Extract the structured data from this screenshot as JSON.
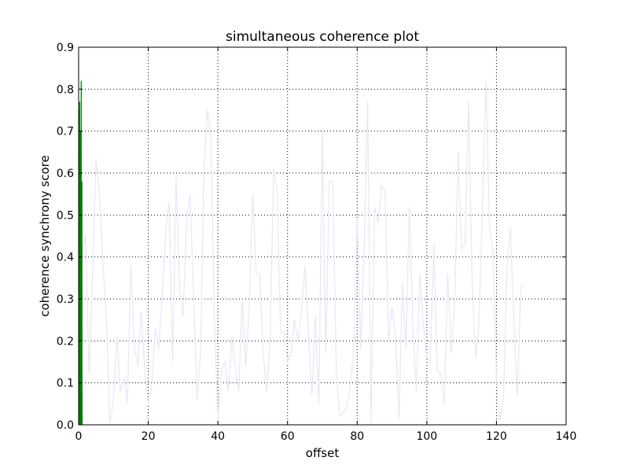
{
  "chart_data": {
    "type": "line",
    "title": "simultaneous coherence plot",
    "xlabel": "offset",
    "ylabel": "coherence synchrony score",
    "xlim": [
      0,
      140
    ],
    "ylim": [
      0,
      0.9
    ],
    "xticks": [
      "0",
      "20",
      "40",
      "60",
      "80",
      "100",
      "120",
      "140"
    ],
    "yticks": [
      "0.0",
      "0.1",
      "0.2",
      "0.3",
      "0.4",
      "0.5",
      "0.6",
      "0.7",
      "0.8",
      "0.9"
    ],
    "grid": true,
    "legend": "none",
    "colors": {
      "faint_series": "#e6e6fa",
      "marker_series": "#007f00"
    },
    "series": [
      {
        "style": "faint-line",
        "x": [
          0,
          1,
          2,
          3,
          4,
          5,
          6,
          7,
          8,
          9,
          10,
          11,
          12,
          13,
          14,
          15,
          16,
          17,
          18,
          19,
          20,
          21,
          22,
          23,
          24,
          25,
          26,
          27,
          28,
          29,
          30,
          31,
          32,
          33,
          34,
          35,
          36,
          37,
          38,
          39,
          40,
          41,
          42,
          43,
          44,
          45,
          46,
          47,
          48,
          49,
          50,
          51,
          52,
          53,
          54,
          55,
          56,
          57,
          58,
          59,
          60,
          61,
          62,
          63,
          64,
          65,
          66,
          67,
          68,
          69,
          70,
          71,
          72,
          73,
          74,
          75,
          76,
          77,
          78,
          79,
          80,
          81,
          82,
          83,
          84,
          85,
          86,
          87,
          88,
          89,
          90,
          91,
          92,
          93,
          94,
          95,
          96,
          97,
          98,
          99,
          100,
          101,
          102,
          103,
          104,
          105,
          106,
          107,
          108,
          109,
          110,
          111,
          112,
          113,
          114,
          115,
          116,
          117,
          118,
          119,
          120,
          121,
          122,
          123,
          124,
          125,
          126,
          127,
          128
        ],
        "y": [
          0.02,
          0.41,
          0.45,
          0.12,
          0.36,
          0.63,
          0.55,
          0.38,
          0.25,
          0.005,
          0.06,
          0.21,
          0.08,
          0.11,
          0.05,
          0.38,
          0.19,
          0.14,
          0.27,
          0.13,
          0.05,
          0.09,
          0.23,
          0.18,
          0.31,
          0.46,
          0.53,
          0.15,
          0.59,
          0.32,
          0.26,
          0.48,
          0.55,
          0.31,
          0.06,
          0.17,
          0.61,
          0.75,
          0.68,
          0.25,
          0.01,
          0.13,
          0.15,
          0.08,
          0.21,
          0.14,
          0.08,
          0.3,
          0.14,
          0.28,
          0.55,
          0.36,
          0.36,
          0.17,
          0.08,
          0.2,
          0.61,
          0.56,
          0.22,
          0.22,
          0.15,
          0.17,
          0.25,
          0.2,
          0.27,
          0.38,
          0.22,
          0.07,
          0.26,
          0.05,
          0.7,
          0.17,
          0.58,
          0.58,
          0.13,
          0.02,
          0.03,
          0.04,
          0.09,
          0.18,
          0.49,
          0.18,
          0.42,
          0.77,
          0.005,
          0.52,
          0.48,
          0.57,
          0.56,
          0.2,
          0.28,
          0.21,
          0.015,
          0.34,
          0.18,
          0.52,
          0.24,
          0.08,
          0.36,
          0.24,
          0.16,
          0.15,
          0.43,
          0.13,
          0.12,
          0.05,
          0.36,
          0.17,
          0.29,
          0.65,
          0.42,
          0.43,
          0.77,
          0.35,
          0.16,
          0.24,
          0.53,
          0.82,
          0.47,
          0.42,
          0.11,
          0.01,
          0.06,
          0.37,
          0.47,
          0.25,
          0.07,
          0.33,
          0.33
        ]
      },
      {
        "style": "vertical-markers",
        "x": [
          0.05,
          0.1,
          0.15,
          0.2,
          0.25,
          0.3,
          0.35,
          0.4,
          0.45,
          0.5,
          0.55,
          0.6,
          0.65,
          0.7,
          0.75,
          0.8,
          0.85,
          0.9,
          0.95,
          1.0
        ],
        "y": [
          0.75,
          0.03,
          0.66,
          0.12,
          0.52,
          0.77,
          0.01,
          0.43,
          0.28,
          0.7,
          0.06,
          0.39,
          0.62,
          0.18,
          0.82,
          0.47,
          0.09,
          0.34,
          0.58,
          0.08
        ]
      }
    ]
  }
}
